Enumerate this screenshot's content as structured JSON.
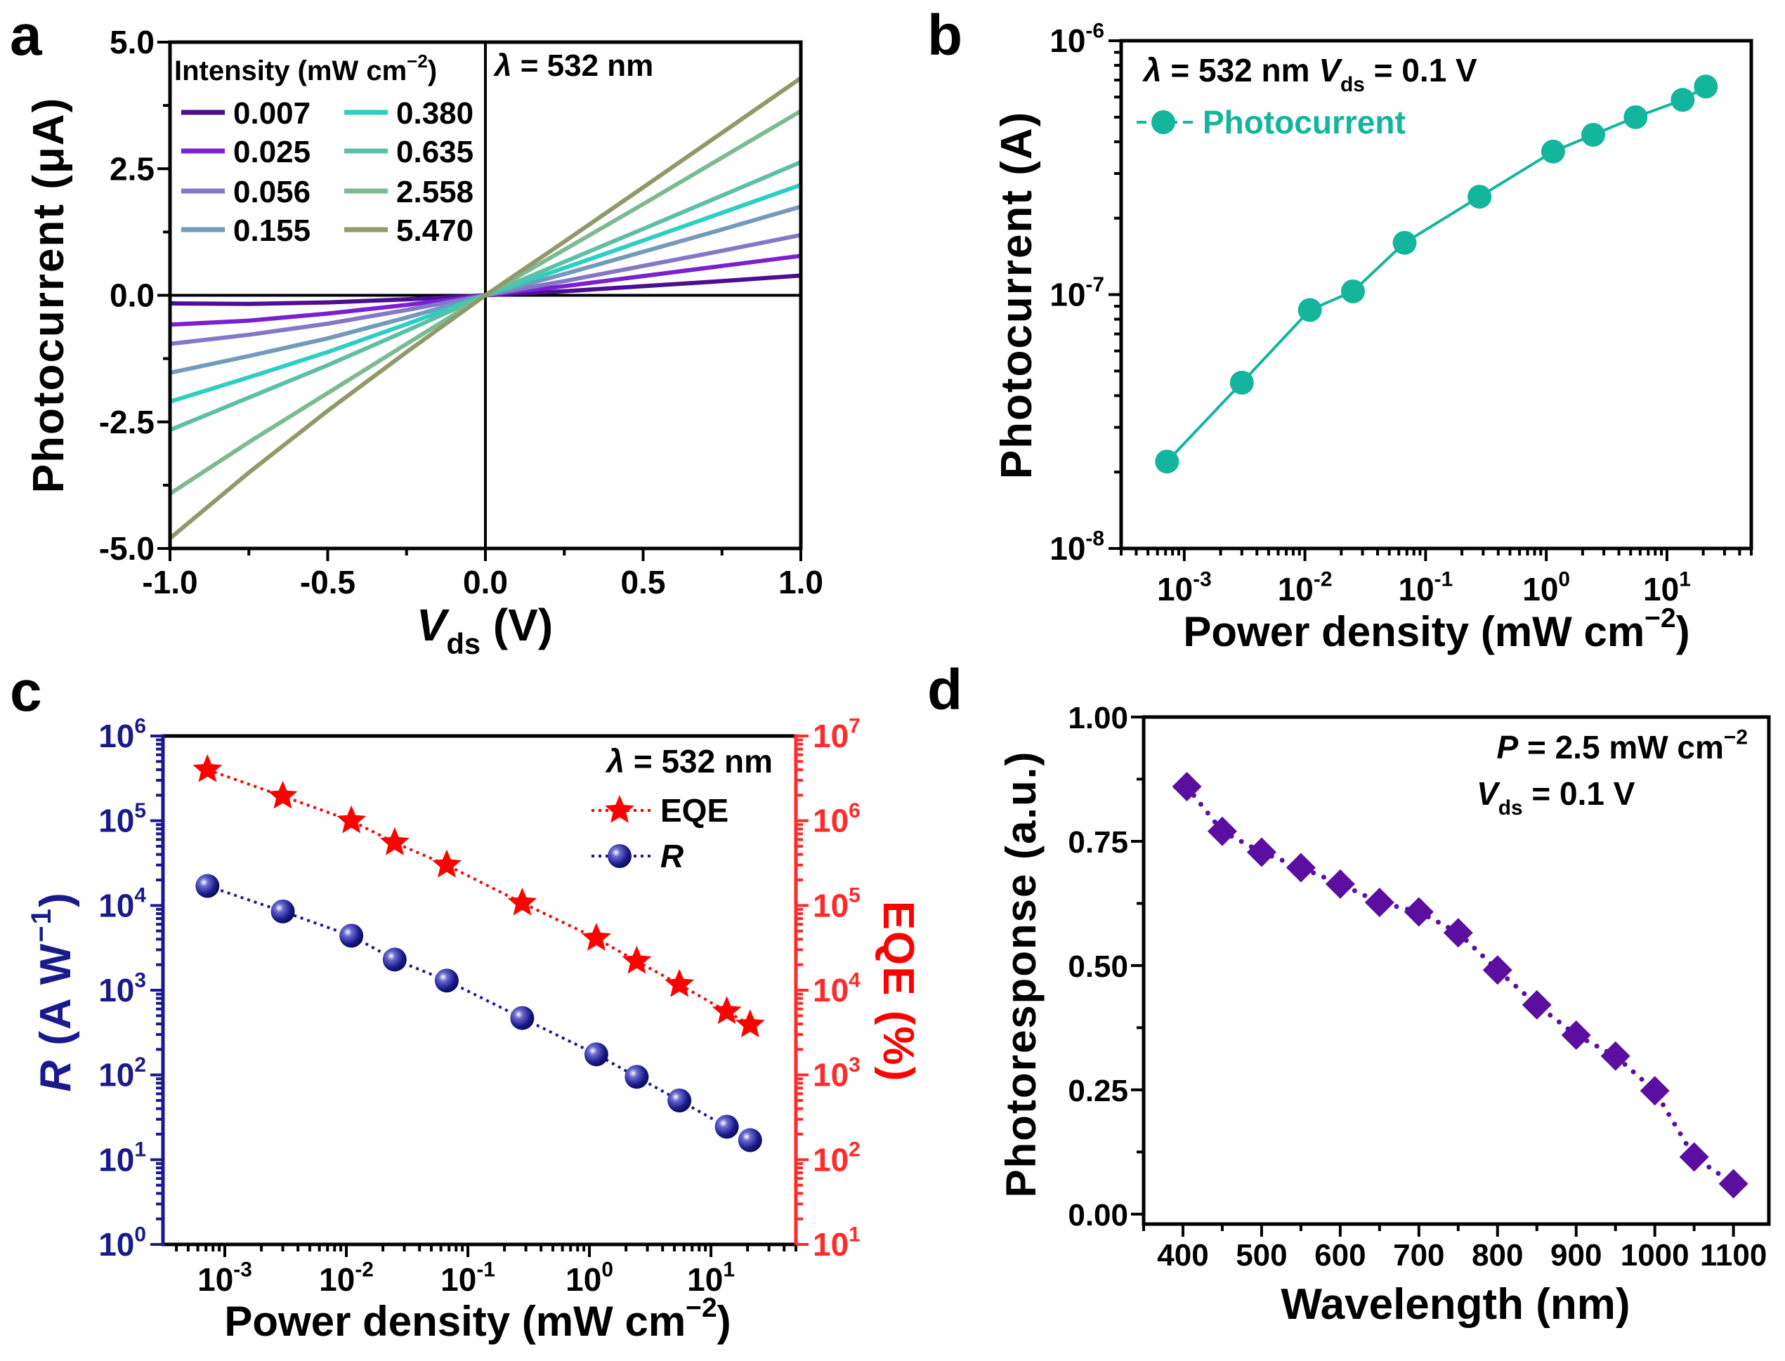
{
  "chart_data": [
    {
      "panel": "a",
      "type": "line",
      "xlabel": [
        {
          "t": "V",
          "i": true
        },
        {
          "t": "ds",
          "sub": true
        },
        {
          "t": " (V)"
        }
      ],
      "ylabel": [
        {
          "t": "Photocurrent (μA)"
        }
      ],
      "xlim": [
        -1.0,
        1.0
      ],
      "ylim": [
        -5.0,
        5.0
      ],
      "xticks": [
        "-1.0",
        "-0.5",
        "0.0",
        "0.5",
        "1.0"
      ],
      "yticks": [
        "-5.0",
        "-2.5",
        "0.0",
        "2.5",
        "5.0"
      ],
      "grid": false,
      "legend_title": [
        {
          "t": "Intensity (mW cm"
        },
        {
          "t": "−2",
          "sup": true
        },
        {
          "t": ")"
        }
      ],
      "legend_placement": "top-left",
      "annotation": [
        {
          "t": "λ",
          "i": true
        },
        {
          "t": " = 532 nm"
        }
      ],
      "x": [
        -1.0,
        -0.75,
        -0.5,
        -0.25,
        0,
        0.25,
        0.5,
        0.75,
        1.0
      ],
      "series": [
        {
          "name": "0.007",
          "color": "#4b0f8f",
          "values": [
            -0.16,
            -0.17,
            -0.14,
            -0.08,
            0,
            0.08,
            0.18,
            0.28,
            0.39
          ]
        },
        {
          "name": "0.025",
          "color": "#7a1fd1",
          "values": [
            -0.58,
            -0.5,
            -0.36,
            -0.19,
            0,
            0.18,
            0.38,
            0.58,
            0.78
          ]
        },
        {
          "name": "0.056",
          "color": "#8577c7",
          "values": [
            -0.96,
            -0.78,
            -0.56,
            -0.29,
            0,
            0.28,
            0.58,
            0.88,
            1.19
          ]
        },
        {
          "name": "0.155",
          "color": "#7399bb",
          "values": [
            -1.53,
            -1.2,
            -0.85,
            -0.44,
            0,
            0.42,
            0.86,
            1.3,
            1.75
          ]
        },
        {
          "name": "0.380",
          "color": "#2ccfc0",
          "values": [
            -2.1,
            -1.62,
            -1.12,
            -0.57,
            0,
            0.54,
            1.08,
            1.63,
            2.18
          ]
        },
        {
          "name": "0.635",
          "color": "#5ebfa7",
          "values": [
            -2.66,
            -2.02,
            -1.38,
            -0.7,
            0,
            0.66,
            1.31,
            1.97,
            2.63
          ]
        },
        {
          "name": "2.558",
          "color": "#7dba93",
          "values": [
            -3.92,
            -2.9,
            -1.93,
            -0.96,
            0,
            0.9,
            1.8,
            2.72,
            3.64
          ]
        },
        {
          "name": "5.470",
          "color": "#8f9a6a",
          "values": [
            -4.8,
            -3.5,
            -2.28,
            -1.12,
            0,
            1.06,
            2.13,
            3.21,
            4.29
          ]
        }
      ]
    },
    {
      "panel": "b",
      "type": "line",
      "xscale": "log",
      "yscale": "log",
      "xlabel": [
        {
          "t": "Power density (mW cm"
        },
        {
          "t": "−2",
          "sup": true
        },
        {
          "t": ")"
        }
      ],
      "ylabel": [
        {
          "t": "Photocurrent (A)"
        }
      ],
      "xlim": [
        0.0003,
        50
      ],
      "ylim": [
        1e-08,
        1e-06
      ],
      "xticks": [
        {
          "b": "10",
          "e": "-3"
        },
        {
          "b": "10",
          "e": "-2"
        },
        {
          "b": "10",
          "e": "-1"
        },
        {
          "b": "10",
          "e": "0"
        },
        {
          "b": "10",
          "e": "1"
        }
      ],
      "yticks": [
        {
          "b": "10",
          "e": "-8"
        },
        {
          "b": "10",
          "e": "-7"
        },
        {
          "b": "10",
          "e": "-6"
        }
      ],
      "grid": false,
      "annotation": [
        {
          "t": "λ",
          "i": true
        },
        {
          "t": " = 532 nm  "
        },
        {
          "t": "V",
          "i": true
        },
        {
          "t": "ds",
          "sub": true
        },
        {
          "t": " = 0.1 V"
        }
      ],
      "legend_placement": "top-left",
      "series": [
        {
          "name": "Photocurrent",
          "color": "#13b59c",
          "x": [
            0.00072,
            0.003,
            0.011,
            0.025,
            0.067,
            0.28,
            1.14,
            2.45,
            5.5,
            13.5,
            21
          ],
          "values": [
            2.2e-08,
            4.5e-08,
            8.7e-08,
            1.03e-07,
            1.6e-07,
            2.43e-07,
            3.66e-07,
            4.26e-07,
            5e-07,
            5.85e-07,
            6.6e-07
          ]
        }
      ]
    },
    {
      "panel": "c",
      "type": "scatter",
      "xscale": "log",
      "yscale": "log",
      "xlabel": [
        {
          "t": "Power density (mW cm"
        },
        {
          "t": "−2",
          "sup": true
        },
        {
          "t": ")"
        }
      ],
      "ylabel": [
        {
          "t": "R",
          "i": true
        },
        {
          "t": " (A W"
        },
        {
          "t": "−1",
          "sup": true
        },
        {
          "t": ")"
        }
      ],
      "ylabel_right": [
        {
          "t": "EQE (%)"
        }
      ],
      "xlim": [
        0.00031,
        50
      ],
      "ylim": [
        1,
        1000000.0
      ],
      "ylim_right": [
        10,
        10000000.0
      ],
      "xticks": [
        {
          "b": "10",
          "e": "-3"
        },
        {
          "b": "10",
          "e": "-2"
        },
        {
          "b": "10",
          "e": "-1"
        },
        {
          "b": "10",
          "e": "0"
        },
        {
          "b": "10",
          "e": "1"
        }
      ],
      "yticks": [
        {
          "b": "10",
          "e": "0"
        },
        {
          "b": "10",
          "e": "1"
        },
        {
          "b": "10",
          "e": "2"
        },
        {
          "b": "10",
          "e": "3"
        },
        {
          "b": "10",
          "e": "4"
        },
        {
          "b": "10",
          "e": "5"
        },
        {
          "b": "10",
          "e": "6"
        }
      ],
      "yticks_right": [
        {
          "b": "10",
          "e": "1"
        },
        {
          "b": "10",
          "e": "2"
        },
        {
          "b": "10",
          "e": "3"
        },
        {
          "b": "10",
          "e": "4"
        },
        {
          "b": "10",
          "e": "5"
        },
        {
          "b": "10",
          "e": "6"
        },
        {
          "b": "10",
          "e": "7"
        }
      ],
      "grid": false,
      "annotation": [
        {
          "t": "λ",
          "i": true
        },
        {
          "t": " = 532 nm"
        }
      ],
      "legend_placement": "top-right",
      "left_axis_color": "#1a1a8c",
      "right_axis_color": "#ff2a2a",
      "x": [
        0.00072,
        0.003,
        0.011,
        0.025,
        0.067,
        0.28,
        1.14,
        2.45,
        5.5,
        13.5,
        21
      ],
      "series": [
        {
          "name": "EQE",
          "axis": "right",
          "color": "#ff0000",
          "marker": "star",
          "values": [
            4000000.0,
            1950000.0,
            1000000.0,
            550000.0,
            300000.0,
            107000.0,
            41000.0,
            22000.0,
            11700.0,
            5600.0,
            3900.0
          ]
        },
        {
          "name": "R",
          "name_italic": true,
          "axis": "left",
          "color": "#1a1a8c",
          "marker": "sphere",
          "values": [
            17000.0,
            8500.0,
            4400.0,
            2300.0,
            1300.0,
            470,
            175,
            95,
            50,
            24.5,
            17
          ]
        }
      ]
    },
    {
      "panel": "d",
      "type": "scatter",
      "xlabel": [
        {
          "t": "Wavelength (nm)"
        }
      ],
      "ylabel": [
        {
          "t": "Photoresponse (a.u.)"
        }
      ],
      "xlim": [
        350,
        1145
      ],
      "ylim": [
        -0.02,
        1.0
      ],
      "xticks": [
        "400",
        "500",
        "600",
        "700",
        "800",
        "900",
        "1000",
        "1100"
      ],
      "yticks": [
        "0.00",
        "0.25",
        "0.50",
        "0.75",
        "1.00"
      ],
      "grid": false,
      "annotation_1": [
        {
          "t": "P",
          "i": true
        },
        {
          "t": " = 2.5 mW cm"
        },
        {
          "t": "−2",
          "sup": true
        }
      ],
      "annotation_2": [
        {
          "t": "V",
          "i": true
        },
        {
          "t": "ds",
          "sub": true
        },
        {
          "t": " = 0.1 V"
        }
      ],
      "series": [
        {
          "color": "#5b0fa0",
          "marker": "diamond",
          "x": [
            405,
            450,
            500,
            550,
            600,
            650,
            700,
            750,
            800,
            850,
            900,
            950,
            1000,
            1050,
            1100
          ],
          "values": [
            0.86,
            0.77,
            0.728,
            0.697,
            0.664,
            0.627,
            0.608,
            0.566,
            0.491,
            0.421,
            0.36,
            0.318,
            0.248,
            0.115,
            0.061
          ]
        }
      ]
    }
  ]
}
